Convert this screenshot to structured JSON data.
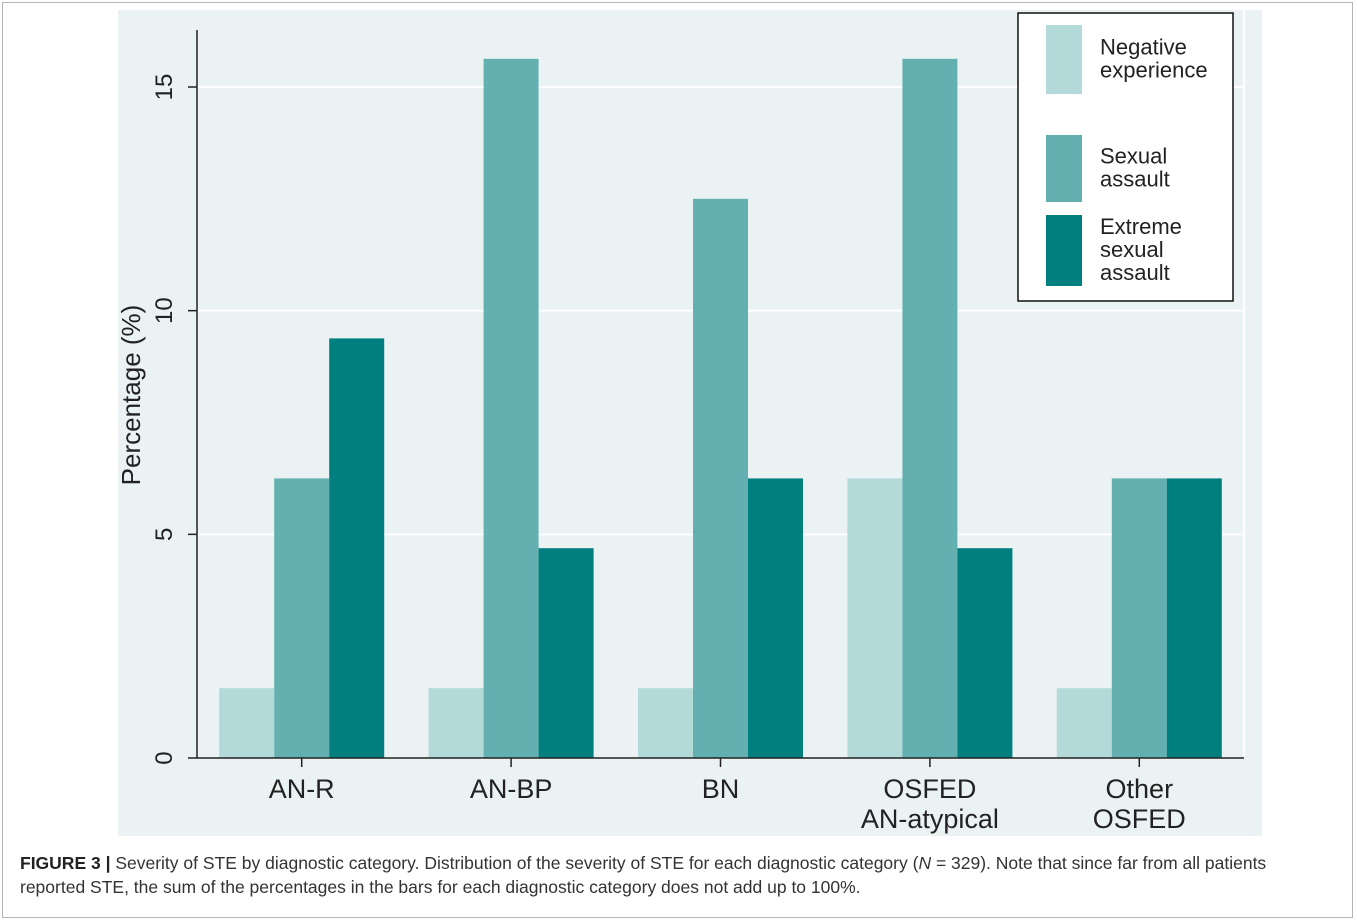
{
  "chart_data": {
    "type": "bar",
    "categories": [
      [
        "AN-R"
      ],
      [
        "AN-BP"
      ],
      [
        "BN"
      ],
      [
        "OSFED",
        "AN-atypical"
      ],
      [
        "Other",
        "OSFED"
      ]
    ],
    "series": [
      {
        "name": "Negative experience",
        "legend_lines": [
          "Negative",
          "experience"
        ],
        "color": "#b3d9d8",
        "values": [
          1.56,
          1.56,
          1.56,
          6.25,
          1.56
        ]
      },
      {
        "name": "Sexual assault",
        "legend_lines": [
          "Sexual",
          "assault"
        ],
        "color": "#64b0b1",
        "values": [
          6.25,
          15.63,
          12.5,
          15.63,
          6.25
        ]
      },
      {
        "name": "Extreme sexual assault",
        "legend_lines": [
          "Extreme",
          "sexual",
          "assault"
        ],
        "color": "#007f7e",
        "values": [
          9.38,
          4.69,
          6.25,
          4.69,
          6.25
        ]
      }
    ],
    "ylabel": "Percentage (%)",
    "xlabel": "",
    "ylim": [
      0,
      16.5
    ],
    "yticks": [
      0,
      5,
      10,
      15
    ],
    "grid": true,
    "legend_position": "top-right",
    "background_color": "#eaf2f3"
  },
  "caption": {
    "label": "FIGURE 3 |",
    "text_before_italic": " Severity of STE by diagnostic category. Distribution of the severity of STE for each diagnostic category (",
    "italic": "N",
    "text_after_italic": " = 329). Note that since far from all patients reported STE, the sum of the percentages in the bars for each diagnostic category does not add up to 100%."
  }
}
